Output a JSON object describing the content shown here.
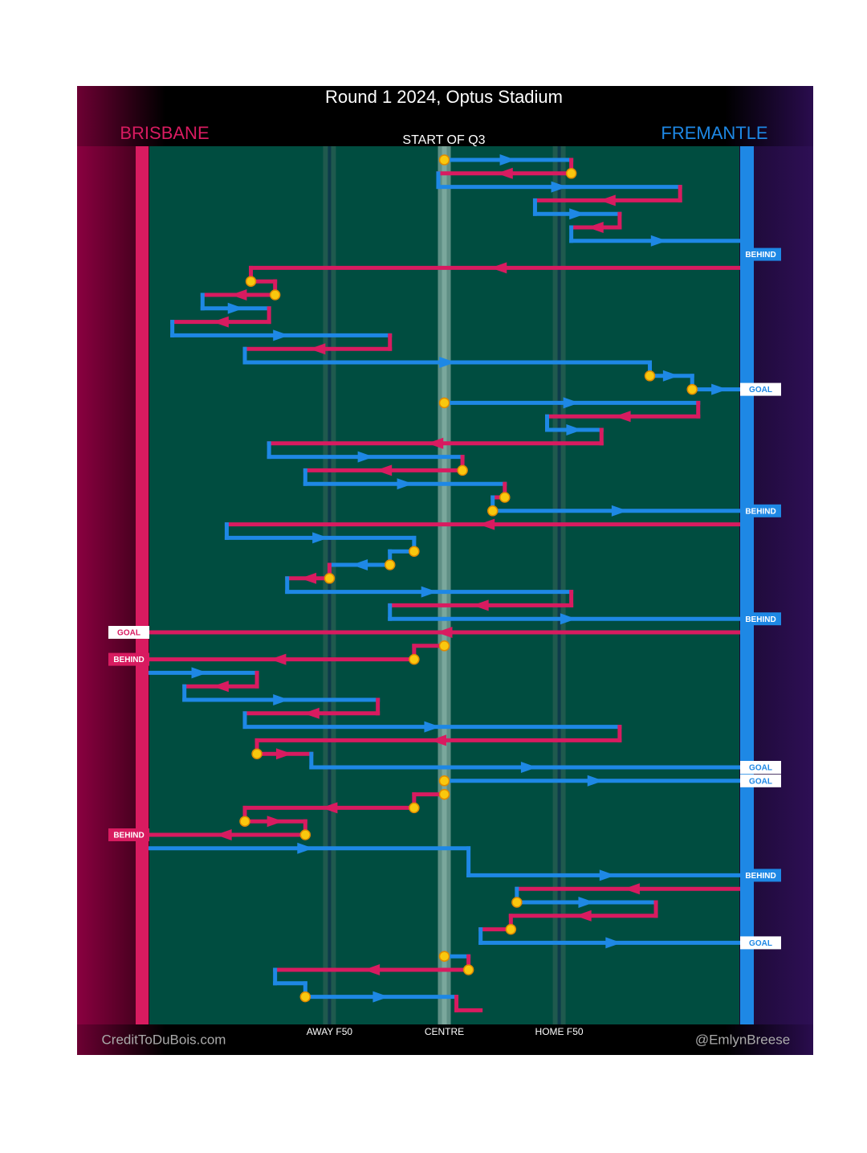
{
  "chart_data": {
    "type": "chain",
    "title": "Round 1 2024, Optus Stadium",
    "subtitle": "START OF Q3",
    "credit": "CreditToDuBois.com",
    "handle": "@EmlynBreese",
    "xlim": [
      0,
      100
    ],
    "xticks": [
      {
        "value": 31,
        "label": "AWAY F50"
      },
      {
        "value": 50,
        "label": "CENTRE"
      },
      {
        "value": 69,
        "label": "HOME F50"
      }
    ],
    "series": [
      {
        "name": "BRISBANE",
        "color": "#d81b60",
        "values": [
          null,
          [
            71,
            49
          ],
          null,
          [
            89,
            65
          ],
          null,
          [
            79,
            71
          ],
          null,
          null,
          [
            100,
            18
          ],
          [
            18,
            22
          ],
          [
            22,
            10
          ],
          null,
          [
            21,
            5
          ],
          null,
          [
            41,
            17
          ],
          null,
          null,
          null,
          null,
          [
            92,
            67
          ],
          null,
          [
            76,
            21
          ],
          null,
          [
            53,
            27
          ],
          null,
          [
            60,
            58
          ],
          null,
          [
            100,
            14
          ],
          null,
          null,
          null,
          [
            31,
            24
          ],
          null,
          [
            71,
            41
          ],
          null,
          [
            100,
            0
          ],
          [
            50,
            45
          ],
          [
            45,
            0
          ],
          null,
          [
            19,
            7
          ],
          null,
          [
            39,
            17
          ],
          null,
          [
            79,
            19
          ],
          [
            19,
            28
          ],
          null,
          null,
          [
            50,
            45
          ],
          [
            45,
            17
          ],
          [
            17,
            27
          ],
          [
            27,
            0
          ],
          null,
          null,
          null,
          [
            100,
            62
          ],
          null,
          [
            85,
            61
          ],
          [
            61,
            56
          ],
          null,
          null,
          [
            54,
            22
          ],
          null,
          null,
          [
            52,
            56
          ]
        ],
        "results": [
          null,
          null,
          null,
          null,
          null,
          null,
          null,
          null,
          null,
          null,
          null,
          null,
          null,
          null,
          null,
          null,
          null,
          null,
          null,
          null,
          null,
          null,
          null,
          null,
          null,
          null,
          null,
          null,
          null,
          null,
          null,
          null,
          null,
          null,
          null,
          "GOAL",
          null,
          "BEHIND",
          null,
          null,
          null,
          null,
          null,
          null,
          null,
          null,
          null,
          null,
          null,
          null,
          "BEHIND",
          null,
          null,
          null,
          null,
          null,
          null,
          null,
          null,
          null,
          null,
          null,
          null,
          null
        ]
      },
      {
        "name": "FREMANTLE",
        "color": "#1e88e5",
        "values": [
          [
            50,
            71
          ],
          null,
          [
            49,
            89
          ],
          null,
          [
            65,
            79
          ],
          null,
          [
            71,
            100
          ],
          null,
          null,
          null,
          null,
          [
            10,
            21
          ],
          null,
          [
            5,
            41
          ],
          null,
          [
            17,
            84
          ],
          [
            84,
            91
          ],
          [
            91,
            100
          ],
          [
            50,
            92
          ],
          null,
          [
            67,
            76
          ],
          null,
          [
            21,
            53
          ],
          null,
          [
            27,
            60
          ],
          null,
          [
            58,
            100
          ],
          null,
          [
            14,
            45
          ],
          [
            45,
            41
          ],
          [
            41,
            31
          ],
          null,
          [
            24,
            71
          ],
          null,
          [
            41,
            100
          ],
          null,
          null,
          null,
          [
            0,
            19
          ],
          null,
          [
            7,
            39
          ],
          null,
          [
            17,
            79
          ],
          null,
          null,
          [
            28,
            100
          ],
          [
            50,
            100
          ],
          null,
          null,
          null,
          null,
          [
            0,
            54
          ],
          null,
          [
            54,
            100
          ],
          null,
          [
            62,
            85
          ],
          null,
          null,
          [
            56,
            100
          ],
          [
            50,
            54
          ],
          null,
          [
            22,
            27
          ],
          [
            27,
            52
          ],
          null
        ],
        "results": [
          null,
          null,
          null,
          null,
          null,
          null,
          null,
          "BEHIND",
          null,
          null,
          null,
          null,
          null,
          null,
          null,
          null,
          null,
          "GOAL",
          null,
          null,
          null,
          null,
          null,
          null,
          null,
          null,
          "BEHIND",
          null,
          null,
          null,
          null,
          null,
          null,
          null,
          "BEHIND",
          null,
          null,
          null,
          null,
          null,
          null,
          null,
          null,
          null,
          null,
          "GOAL",
          "GOAL",
          null,
          null,
          null,
          null,
          null,
          null,
          "BEHIND",
          null,
          null,
          null,
          null,
          "GOAL",
          null,
          null,
          null,
          null,
          null
        ]
      }
    ],
    "stoppages": [
      true,
      true,
      false,
      false,
      false,
      false,
      false,
      false,
      false,
      true,
      true,
      false,
      false,
      false,
      false,
      false,
      true,
      true,
      true,
      false,
      false,
      false,
      false,
      true,
      false,
      true,
      true,
      false,
      false,
      true,
      true,
      true,
      false,
      false,
      false,
      false,
      true,
      true,
      false,
      false,
      false,
      false,
      false,
      false,
      true,
      false,
      true,
      true,
      true,
      true,
      true,
      false,
      false,
      false,
      false,
      true,
      false,
      true,
      false,
      true,
      true,
      false,
      true,
      false
    ]
  }
}
